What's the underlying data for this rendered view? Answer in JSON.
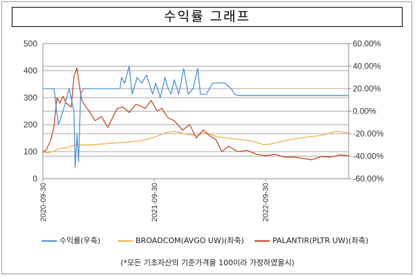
{
  "title": "수익률 그래프",
  "note": "(*모든 기초자산의 기준가격을 100이라 가정하였을시)",
  "chart_data": {
    "type": "line",
    "y_left": {
      "ticks": [
        "0",
        "100",
        "200",
        "300",
        "400",
        "500"
      ],
      "min": 0,
      "max": 500
    },
    "y_right": {
      "ticks": [
        "60.00%",
        "40.00%",
        "20.00%",
        "0.00%",
        "-20.00%",
        "-40.00%",
        "-60.00%"
      ],
      "min": -60,
      "max": 60
    },
    "x_ticks": [
      "2020-09-30",
      "2021-09-30",
      "2022-09-30"
    ],
    "x_range": [
      "2020-09-30",
      "2023-06-30"
    ],
    "grid": "horizontal",
    "legend_position": "bottom",
    "series": [
      {
        "name": "수익률(우축)",
        "axis": "right",
        "color": "#4a90d9",
        "x": [
          "2020-09-30",
          "2020-11-05",
          "2020-11-08",
          "2020-11-12",
          "2020-11-20",
          "2020-12-05",
          "2020-12-25",
          "2021-01-10",
          "2021-01-14",
          "2021-01-20",
          "2021-01-25",
          "2021-02-01",
          "2021-02-10",
          "2021-03-01",
          "2021-04-01",
          "2021-05-15",
          "2021-06-10",
          "2021-06-15",
          "2021-06-25",
          "2021-07-10",
          "2021-07-20",
          "2021-08-05",
          "2021-08-20",
          "2021-09-05",
          "2021-09-25",
          "2021-10-05",
          "2021-10-20",
          "2021-11-05",
          "2021-11-15",
          "2021-11-25",
          "2021-12-05",
          "2021-12-20",
          "2022-01-05",
          "2022-01-20",
          "2022-02-05",
          "2022-02-20",
          "2022-03-01",
          "2022-03-20",
          "2022-04-10",
          "2022-05-01",
          "2022-05-20",
          "2022-06-10",
          "2022-06-20",
          "2022-07-01",
          "2023-06-30"
        ],
        "y": [
          20,
          20,
          15,
          5,
          -12,
          0,
          20,
          0,
          -50,
          -20,
          -45,
          15,
          20,
          20,
          20,
          20,
          20,
          30,
          25,
          40,
          15,
          30,
          25,
          32,
          15,
          25,
          12,
          30,
          20,
          15,
          28,
          15,
          38,
          15,
          20,
          38,
          15,
          15,
          25,
          25,
          25,
          20,
          15,
          14,
          14
        ]
      },
      {
        "name": "BROADCOM(AVGO UW)(좌축)",
        "axis": "left",
        "color": "#f4b04e",
        "x": [
          "2020-09-30",
          "2020-10-15",
          "2020-11-01",
          "2020-11-20",
          "2020-12-15",
          "2021-01-15",
          "2021-03-01",
          "2021-05-01",
          "2021-07-01",
          "2021-08-15",
          "2021-09-20",
          "2021-10-15",
          "2021-11-05",
          "2021-12-10",
          "2022-01-10",
          "2022-02-15",
          "2022-03-20",
          "2022-04-25",
          "2022-06-01",
          "2022-07-05",
          "2022-08-15",
          "2022-09-25",
          "2022-10-25",
          "2022-12-01",
          "2023-01-15",
          "2023-02-20",
          "2023-04-01",
          "2023-05-20",
          "2023-06-30"
        ],
        "y": [
          97,
          95,
          100,
          110,
          115,
          125,
          125,
          130,
          135,
          140,
          150,
          160,
          170,
          175,
          165,
          160,
          170,
          155,
          150,
          145,
          140,
          125,
          130,
          140,
          150,
          155,
          160,
          175,
          170
        ]
      },
      {
        "name": "PALANTIR(PLTR UW)(좌축)",
        "axis": "left",
        "color": "#c8431e",
        "x": [
          "2020-09-30",
          "2020-10-10",
          "2020-10-25",
          "2020-11-05",
          "2020-11-15",
          "2020-11-25",
          "2020-12-05",
          "2020-12-15",
          "2021-01-01",
          "2021-01-10",
          "2021-01-20",
          "2021-01-27",
          "2021-02-05",
          "2021-02-15",
          "2021-03-01",
          "2021-03-20",
          "2021-04-10",
          "2021-05-01",
          "2021-06-01",
          "2021-06-20",
          "2021-07-10",
          "2021-08-01",
          "2021-08-15",
          "2021-09-01",
          "2021-09-20",
          "2021-10-10",
          "2021-10-25",
          "2021-11-15",
          "2021-12-05",
          "2022-01-01",
          "2022-01-25",
          "2022-02-15",
          "2022-03-10",
          "2022-03-30",
          "2022-04-20",
          "2022-05-10",
          "2022-06-01",
          "2022-07-01",
          "2022-08-01",
          "2022-09-01",
          "2022-10-01",
          "2022-11-01",
          "2022-12-01",
          "2023-01-01",
          "2023-02-01",
          "2023-03-01",
          "2023-04-01",
          "2023-05-01",
          "2023-06-01",
          "2023-06-30"
        ],
        "y": [
          100,
          105,
          140,
          190,
          300,
          280,
          305,
          280,
          265,
          380,
          410,
          350,
          290,
          270,
          250,
          215,
          230,
          190,
          260,
          265,
          245,
          275,
          270,
          260,
          290,
          250,
          260,
          225,
          215,
          180,
          200,
          150,
          180,
          160,
          145,
          100,
          120,
          100,
          105,
          90,
          85,
          90,
          80,
          80,
          75,
          70,
          82,
          80,
          88,
          85
        ]
      }
    ]
  }
}
